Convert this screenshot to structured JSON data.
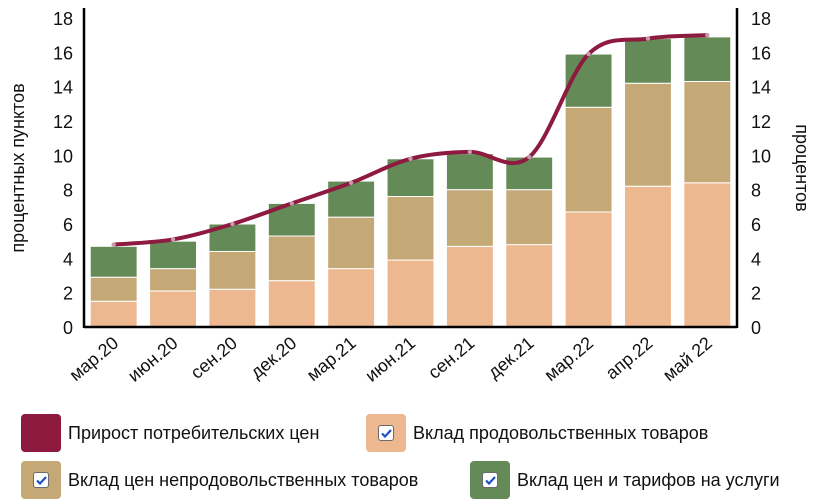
{
  "chart_data": {
    "type": "bar",
    "stacked": true,
    "categories": [
      "мар.20",
      "июн.20",
      "сен.20",
      "дек.20",
      "мар.21",
      "июн.21",
      "сен.21",
      "дек.21",
      "мар.22",
      "апр.22",
      "май 22"
    ],
    "series": [
      {
        "name": "Вклад продовольственных товаров",
        "kind": "bar",
        "color": "#EDB78F",
        "values": [
          1.5,
          2.1,
          2.2,
          2.7,
          3.4,
          3.9,
          4.7,
          4.8,
          6.7,
          8.2,
          8.4
        ]
      },
      {
        "name": "Вклад цен непродовольственных товаров",
        "kind": "bar",
        "color": "#C4A876",
        "values": [
          1.4,
          1.3,
          2.2,
          2.6,
          3.0,
          3.7,
          3.3,
          3.2,
          6.1,
          6.0,
          5.9
        ]
      },
      {
        "name": "Вклад цен и тарифов на услуги",
        "kind": "bar",
        "color": "#648A57",
        "values": [
          1.8,
          1.6,
          1.6,
          1.9,
          2.1,
          2.2,
          2.1,
          1.9,
          3.1,
          2.6,
          2.6
        ]
      },
      {
        "name": "Прирост потребительских цен",
        "kind": "line",
        "color": "#8E1A3F",
        "values": [
          4.8,
          5.1,
          6.0,
          7.2,
          8.4,
          9.8,
          10.2,
          9.9,
          15.9,
          16.8,
          17.0
        ]
      }
    ],
    "ylabel_left": "процентных пунктов",
    "ylabel_right": "процентов",
    "ylim": [
      0,
      18
    ],
    "yticks": [
      0,
      2,
      4,
      6,
      8,
      10,
      12,
      14,
      16,
      18
    ],
    "grid": false,
    "legend_position": "bottom"
  },
  "legend": {
    "line_label": "Прирост потребительских цен",
    "food_label": "Вклад продовольственных товаров",
    "nonfood_label": "Вклад цен непродовольственных товаров",
    "services_label": "Вклад цен и тарифов на услуги"
  },
  "colors": {
    "line": "#8E1A3F",
    "food": "#EDB78F",
    "nonfood": "#C4A876",
    "services": "#648A57",
    "checkbox_tick": "#1F4FC8"
  }
}
